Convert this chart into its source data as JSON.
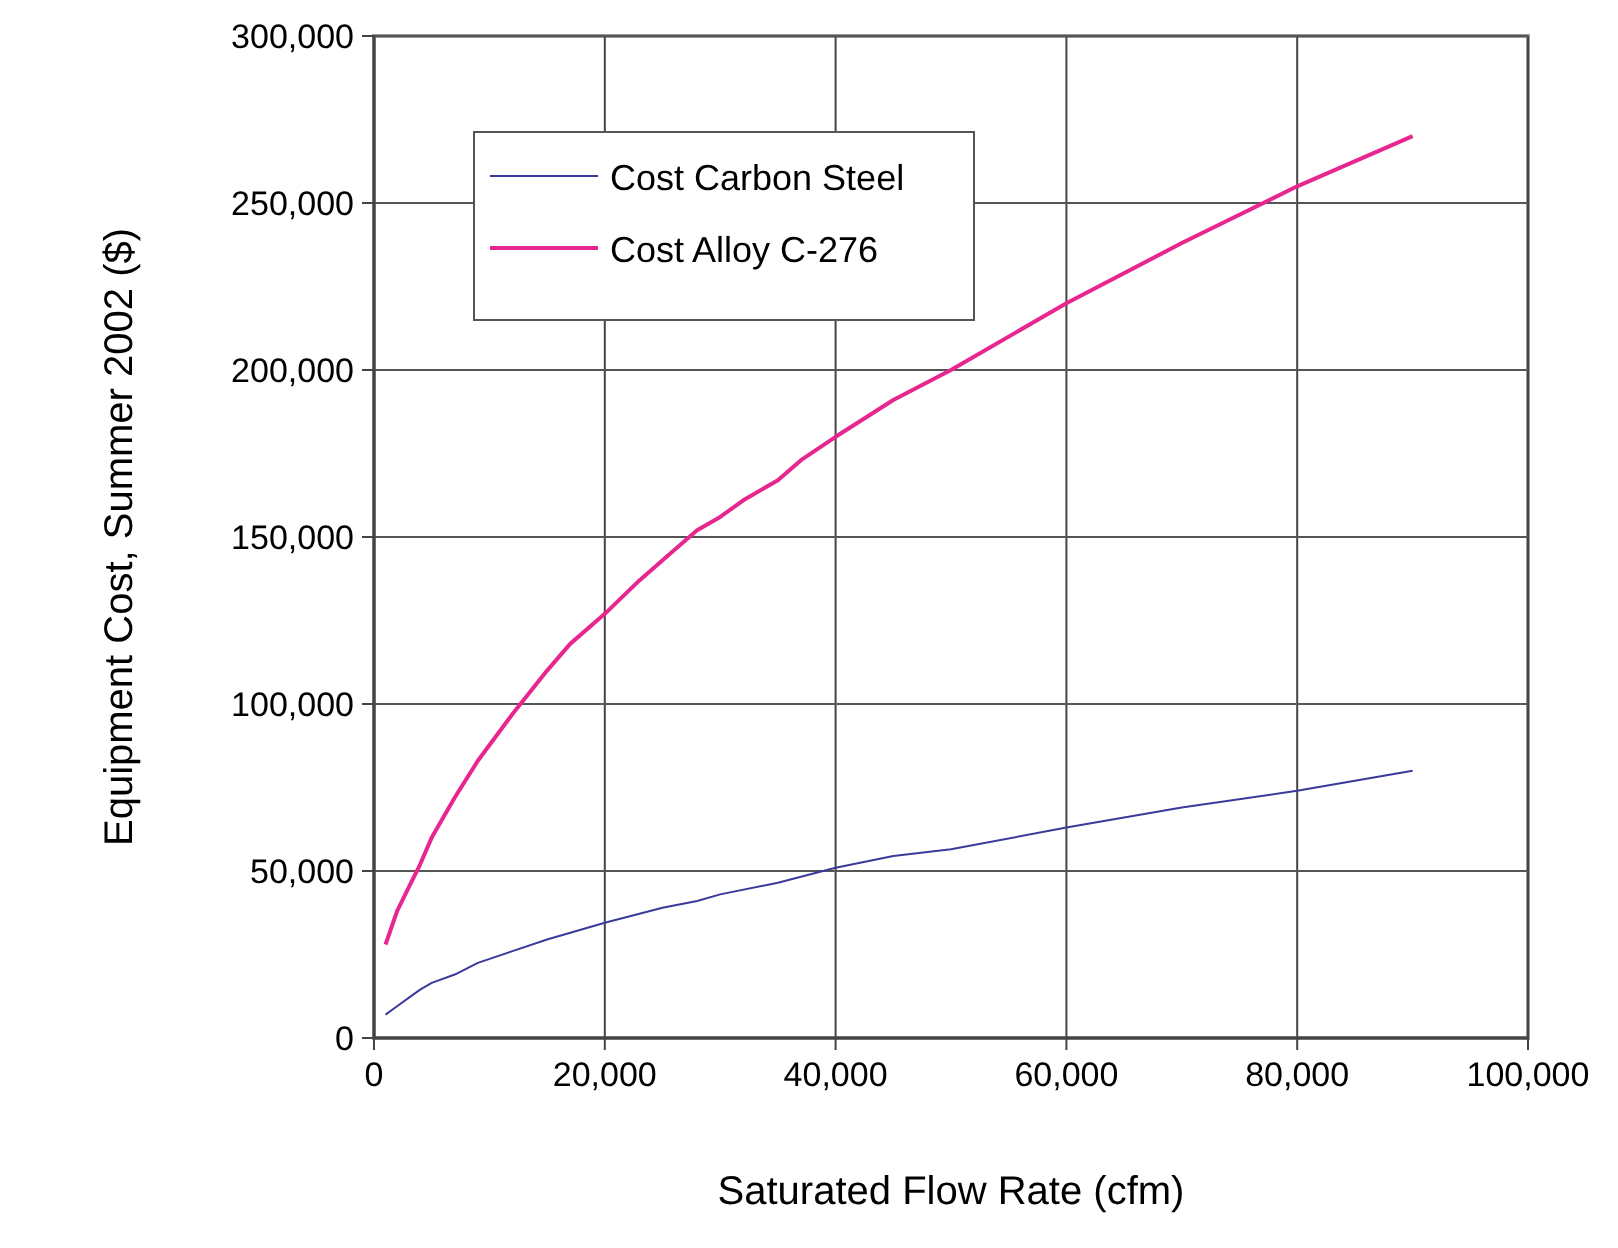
{
  "chart_data": {
    "type": "line",
    "xlabel": "Saturated Flow Rate  (cfm)",
    "ylabel": "Equipment Cost, Summer 2002 ($)",
    "xlim": [
      0,
      100000
    ],
    "xticks": [
      {
        "value": 0,
        "label": "0"
      },
      {
        "value": 20000,
        "label": "20,000"
      },
      {
        "value": 40000,
        "label": "40,000"
      },
      {
        "value": 60000,
        "label": "60,000"
      },
      {
        "value": 80000,
        "label": "80,000"
      },
      {
        "value": 100000,
        "label": "100,000"
      }
    ],
    "ylim": [
      0,
      300000
    ],
    "yticks": [
      {
        "value": 0,
        "label": "0"
      },
      {
        "value": 50000,
        "label": "50,000"
      },
      {
        "value": 100000,
        "label": "100,000"
      },
      {
        "value": 150000,
        "label": "150,000"
      },
      {
        "value": 200000,
        "label": "200,000"
      },
      {
        "value": 250000,
        "label": "250,000"
      },
      {
        "value": 300000,
        "label": "300,000"
      }
    ],
    "grid": true,
    "legend": "top left",
    "marker": "none",
    "line_style": "solid",
    "series": [
      {
        "name": "Cost Carbon Steel",
        "color": "#3a3a9c",
        "x": [
          1000,
          2000,
          3000,
          4000,
          5000,
          7000,
          9000,
          12000,
          15000,
          20000,
          25000,
          28000,
          30000,
          35000,
          40000,
          45000,
          50000,
          60000,
          70000,
          80000,
          90000
        ],
        "values": [
          7000,
          9500,
          12000,
          14500,
          16500,
          19000,
          22500,
          26000,
          29500,
          34500,
          39000,
          41000,
          43000,
          46500,
          51000,
          54500,
          56500,
          63000,
          69000,
          74000,
          80000
        ]
      },
      {
        "name": "Cost  Alloy C-276",
        "color": "#e8268f",
        "x": [
          1000,
          2000,
          3000,
          4000,
          5000,
          7000,
          9000,
          12000,
          15000,
          17000,
          20000,
          23000,
          26000,
          28000,
          30000,
          32000,
          35000,
          37000,
          40000,
          45000,
          50000,
          60000,
          70000,
          80000,
          90000
        ],
        "values": [
          28000,
          38000,
          45000,
          52000,
          60000,
          72000,
          83000,
          97000,
          110000,
          118000,
          127000,
          137000,
          146000,
          152000,
          156000,
          161000,
          167000,
          173000,
          180000,
          191000,
          200000,
          220000,
          238000,
          255000,
          270000
        ]
      }
    ]
  }
}
